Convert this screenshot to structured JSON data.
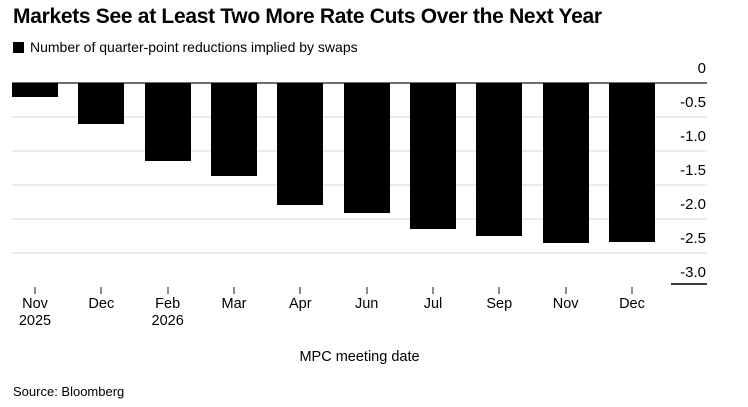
{
  "title": "Markets See at Least Two More Rate Cuts Over the Next Year",
  "legend": {
    "label": "Number of quarter-point reductions implied by swaps",
    "swatch_color": "#000000"
  },
  "source": "Source: Bloomberg",
  "colors": {
    "bar": "#000000",
    "zero_line": "#6e6e6e",
    "gridline": "#ebebeb",
    "tick": "#8c8c8c",
    "axis_cap": "#3c3c3c",
    "text": "#000000",
    "background": "#ffffff"
  },
  "chart_data": {
    "type": "bar",
    "title": "Markets See at Least Two More Rate Cuts Over the Next Year",
    "series_name": "Number of quarter-point reductions implied by swaps",
    "categories": [
      "Nov",
      "Dec",
      "Feb",
      "Mar",
      "Apr",
      "Jun",
      "Jul",
      "Sep",
      "Nov",
      "Dec"
    ],
    "category_sublabels": [
      "2025",
      "",
      "2026",
      "",
      "",
      "",
      "",
      "",
      "",
      ""
    ],
    "values": [
      -0.21,
      -0.61,
      -1.15,
      -1.38,
      -1.8,
      -1.92,
      -2.16,
      -2.25,
      -2.36,
      -2.35
    ],
    "xlabel": "MPC meeting date",
    "ylabel": "",
    "ylim": [
      -3.0,
      0
    ],
    "y_ticks": [
      0,
      -0.5,
      -1.0,
      -1.5,
      -2.0,
      -2.5,
      -3.0
    ],
    "y_tick_labels": [
      "0",
      "-0.5",
      "-1.0",
      "-1.5",
      "-2.0",
      "-2.5",
      "-3.0"
    ],
    "grid": true,
    "legend_position": "top-left",
    "bar_color": "#000000",
    "axis_side": "right"
  }
}
